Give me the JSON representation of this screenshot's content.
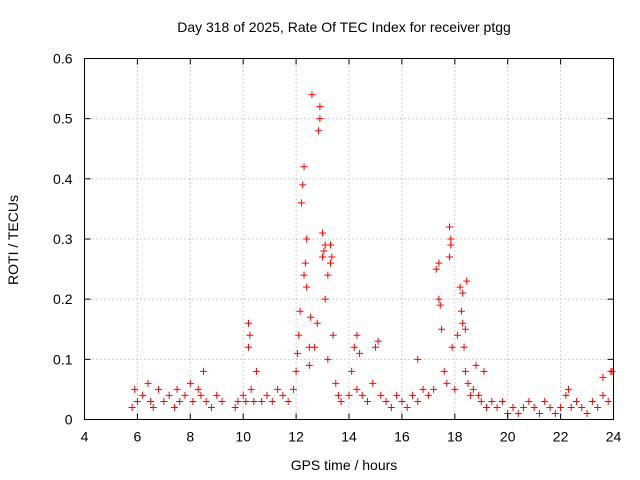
{
  "chart_data": {
    "type": "scatter",
    "title": "Day 318 of 2025, Rate Of TEC Index for receiver ptgg",
    "xlabel": "GPS time / hours",
    "ylabel": "ROTI / TECUs",
    "xlim": [
      4,
      24
    ],
    "ylim": [
      0,
      0.6
    ],
    "x_ticks": [
      4,
      6,
      8,
      10,
      12,
      14,
      16,
      18,
      20,
      22,
      24
    ],
    "x_tick_labels": [
      "4",
      "6",
      "8",
      "10",
      "12",
      "14",
      "16",
      "18",
      "20",
      "22",
      "24"
    ],
    "y_ticks": [
      0,
      0.1,
      0.2,
      0.3,
      0.4,
      0.5,
      0.6
    ],
    "y_tick_labels": [
      "0",
      "0.1",
      "0.2",
      "0.3",
      "0.4",
      "0.5",
      "0.6"
    ],
    "grid": true,
    "marker": "plus",
    "point_color": "#ff0000",
    "series": [
      {
        "x": [
          5.8,
          5.9,
          6.0,
          6.2,
          6.4,
          6.5,
          6.6,
          6.8,
          7.0,
          7.2,
          7.4,
          7.5,
          7.6,
          7.8,
          8.0,
          8.1,
          8.3,
          8.4,
          8.6,
          8.8,
          9.0,
          9.2,
          9.7,
          9.8,
          10.0,
          10.1,
          10.2,
          10.3,
          10.4,
          10.5,
          10.7,
          10.9,
          11.1,
          11.3,
          11.5,
          11.7,
          11.9,
          12.0,
          12.05,
          12.1,
          12.15,
          12.2,
          12.25,
          12.3,
          12.35,
          12.4,
          12.5,
          12.55,
          12.6,
          12.7,
          12.8,
          12.85,
          12.9,
          13.0,
          13.05,
          13.1,
          13.2,
          13.3,
          13.35,
          13.4,
          13.5,
          13.6,
          13.7,
          14.0,
          14.1,
          14.2,
          14.3,
          14.5,
          14.7,
          14.9,
          15.0,
          15.2,
          15.4,
          15.6,
          15.8,
          16.0,
          16.2,
          16.4,
          16.6,
          16.8,
          17.0,
          17.2,
          17.3,
          17.4,
          17.5,
          17.6,
          17.7,
          17.8,
          17.85,
          17.9,
          18.0,
          18.1,
          18.2,
          18.25,
          18.3,
          18.35,
          18.4,
          18.5,
          18.6,
          18.7,
          18.8,
          18.9,
          19.0,
          19.2,
          19.4,
          19.6,
          19.8,
          20.0,
          20.2,
          20.4,
          20.6,
          20.8,
          21.0,
          21.2,
          21.4,
          21.6,
          21.8,
          22.0,
          22.2,
          22.4,
          22.6,
          22.8,
          23.0,
          23.2,
          23.4,
          23.6,
          23.8,
          23.9,
          8.5,
          10.2,
          10.25,
          12.3,
          12.4,
          12.5,
          12.9,
          13.0,
          13.1,
          13.2,
          13.3,
          14.3,
          14.4,
          15.1,
          16.6,
          17.4,
          17.45,
          17.8,
          17.85,
          18.3,
          18.4,
          18.45,
          19.1,
          22.3,
          23.6,
          23.95
        ],
        "y": [
          0.02,
          0.05,
          0.03,
          0.04,
          0.06,
          0.03,
          0.02,
          0.05,
          0.03,
          0.04,
          0.02,
          0.05,
          0.03,
          0.04,
          0.06,
          0.03,
          0.05,
          0.04,
          0.03,
          0.02,
          0.04,
          0.03,
          0.02,
          0.03,
          0.04,
          0.03,
          0.12,
          0.05,
          0.03,
          0.08,
          0.03,
          0.04,
          0.03,
          0.05,
          0.04,
          0.03,
          0.05,
          0.08,
          0.11,
          0.14,
          0.18,
          0.36,
          0.39,
          0.42,
          0.26,
          0.22,
          0.09,
          0.17,
          0.54,
          0.12,
          0.16,
          0.48,
          0.52,
          0.31,
          0.28,
          0.2,
          0.1,
          0.29,
          0.27,
          0.14,
          0.06,
          0.04,
          0.03,
          0.04,
          0.08,
          0.12,
          0.05,
          0.04,
          0.03,
          0.06,
          0.12,
          0.04,
          0.03,
          0.02,
          0.04,
          0.03,
          0.02,
          0.04,
          0.03,
          0.05,
          0.04,
          0.05,
          0.25,
          0.2,
          0.15,
          0.08,
          0.06,
          0.32,
          0.29,
          0.12,
          0.05,
          0.14,
          0.22,
          0.18,
          0.16,
          0.12,
          0.08,
          0.06,
          0.04,
          0.05,
          0.09,
          0.04,
          0.03,
          0.02,
          0.03,
          0.02,
          0.03,
          0.01,
          0.02,
          0.01,
          0.02,
          0.03,
          0.02,
          0.01,
          0.03,
          0.02,
          0.01,
          0.02,
          0.04,
          0.02,
          0.03,
          0.02,
          0.01,
          0.03,
          0.02,
          0.04,
          0.03,
          0.08,
          0.08,
          0.16,
          0.14,
          0.24,
          0.3,
          0.12,
          0.5,
          0.27,
          0.29,
          0.24,
          0.26,
          0.14,
          0.11,
          0.13,
          0.1,
          0.26,
          0.19,
          0.27,
          0.3,
          0.21,
          0.15,
          0.23,
          0.08,
          0.05,
          0.07,
          0.08
        ]
      }
    ]
  }
}
